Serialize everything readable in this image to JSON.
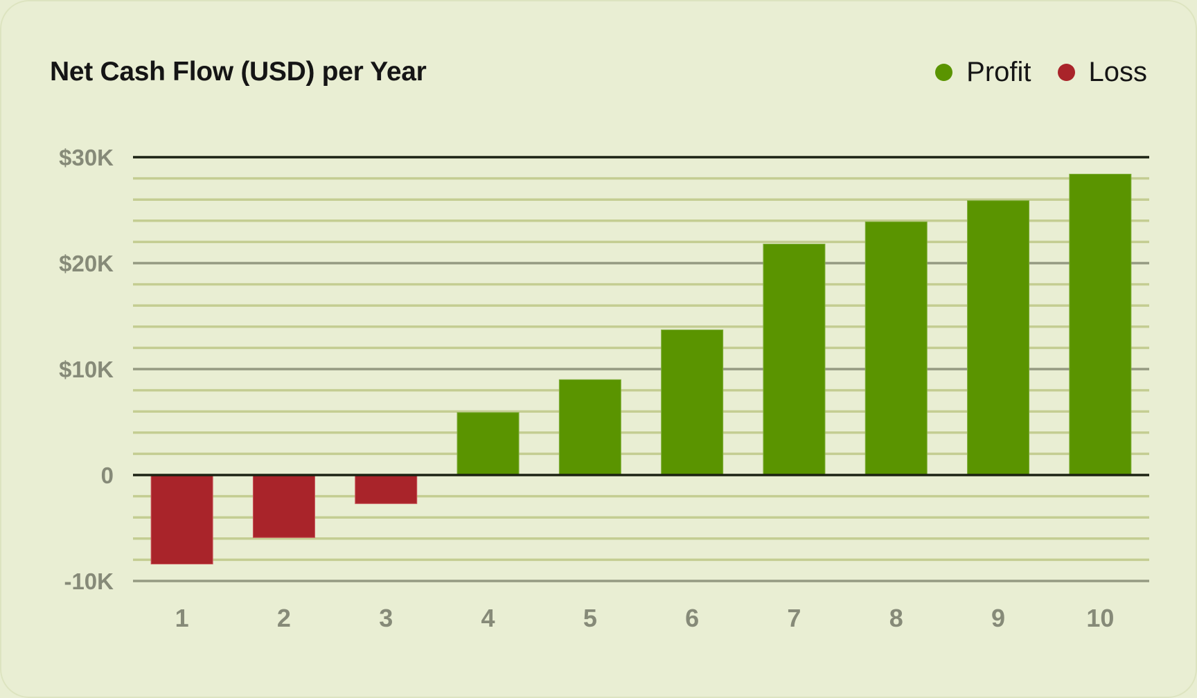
{
  "card": {
    "title": "Net Cash Flow (USD) per Year",
    "background": "#e9eed3"
  },
  "legend": [
    {
      "label": "Profit",
      "color": "#5a9400"
    },
    {
      "label": "Loss",
      "color": "#a9242a"
    }
  ],
  "colors": {
    "profit": "#5a9400",
    "loss": "#a9242a",
    "minor_grid": "#c4cd92",
    "major_grid": "#959a82",
    "axis_line": "#1c2213",
    "tick_text": "#868a78"
  },
  "chart_data": {
    "type": "bar",
    "title": "Net Cash Flow (USD) per Year",
    "xlabel": "",
    "ylabel": "",
    "categories": [
      "1",
      "2",
      "3",
      "4",
      "5",
      "6",
      "7",
      "8",
      "9",
      "10"
    ],
    "values": [
      -8400,
      -5900,
      -2700,
      5900,
      9000,
      13700,
      21800,
      23900,
      25900,
      28400
    ],
    "series": [
      {
        "name": "Profit",
        "color": "#5a9400",
        "values": [
          null,
          null,
          null,
          5900,
          9000,
          13700,
          21800,
          23900,
          25900,
          28400
        ]
      },
      {
        "name": "Loss",
        "color": "#a9242a",
        "values": [
          -8400,
          -5900,
          -2700,
          null,
          null,
          null,
          null,
          null,
          null,
          null
        ]
      }
    ],
    "ylim": [
      -10000,
      30000
    ],
    "yticks": [
      {
        "value": 30000,
        "label": "$30K"
      },
      {
        "value": 20000,
        "label": "$20K"
      },
      {
        "value": 10000,
        "label": "$10K"
      },
      {
        "value": 0,
        "label": "0"
      },
      {
        "value": -10000,
        "label": "-10K"
      }
    ],
    "minor_grid_step": 2000,
    "grid": true,
    "legend_position": "top-right"
  }
}
